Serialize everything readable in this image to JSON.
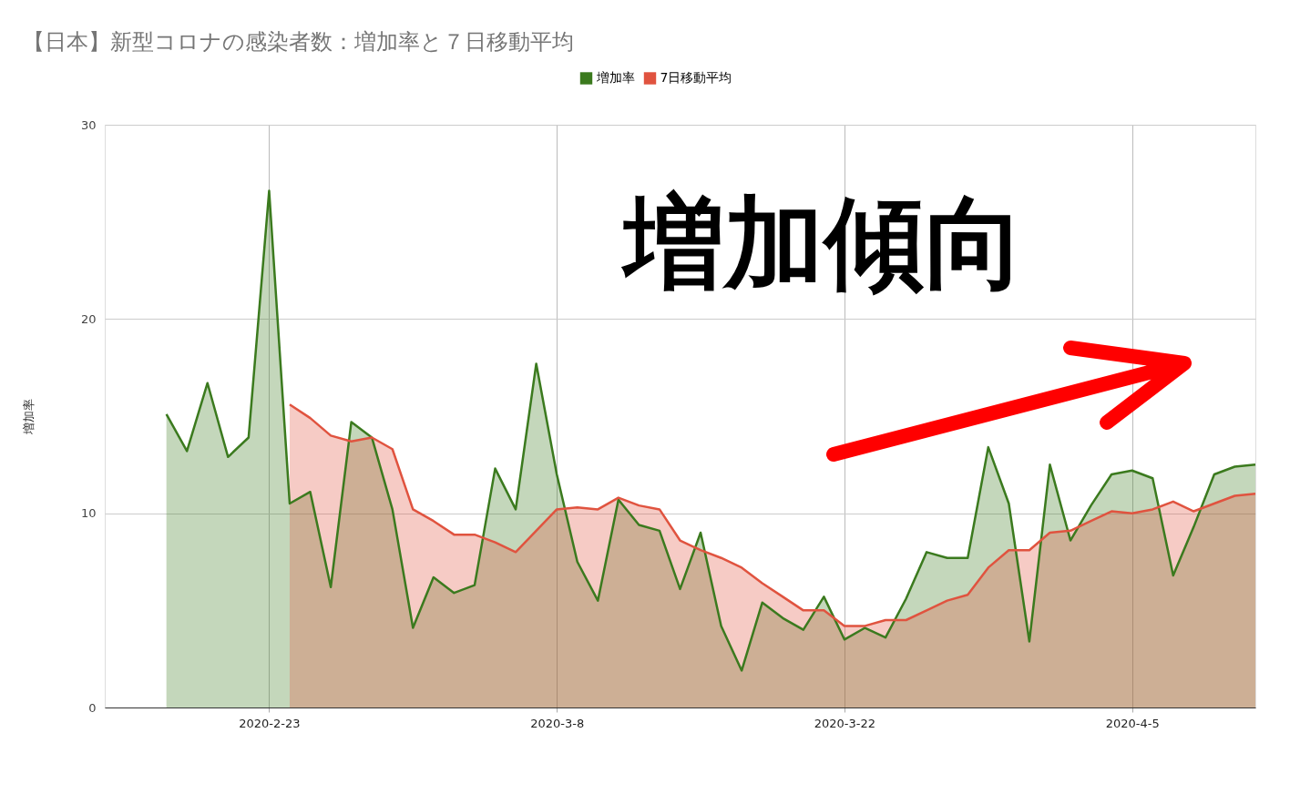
{
  "chart_data": {
    "type": "area",
    "title": "【日本】新型コロナの感染者数：増加率と７日移動平均",
    "ylabel": "増加率",
    "x": [
      "2020-02-18",
      "2020-02-19",
      "2020-02-20",
      "2020-02-21",
      "2020-02-22",
      "2020-02-23",
      "2020-02-24",
      "2020-02-25",
      "2020-02-26",
      "2020-02-27",
      "2020-02-28",
      "2020-02-29",
      "2020-03-01",
      "2020-03-02",
      "2020-03-03",
      "2020-03-04",
      "2020-03-05",
      "2020-03-06",
      "2020-03-07",
      "2020-03-08",
      "2020-03-09",
      "2020-03-10",
      "2020-03-11",
      "2020-03-12",
      "2020-03-13",
      "2020-03-14",
      "2020-03-15",
      "2020-03-16",
      "2020-03-17",
      "2020-03-18",
      "2020-03-19",
      "2020-03-20",
      "2020-03-21",
      "2020-03-22",
      "2020-03-23",
      "2020-03-24",
      "2020-03-25",
      "2020-03-26",
      "2020-03-27",
      "2020-03-28",
      "2020-03-29",
      "2020-03-30",
      "2020-03-31",
      "2020-04-01",
      "2020-04-02",
      "2020-04-03",
      "2020-04-04",
      "2020-04-05",
      "2020-04-06",
      "2020-04-07",
      "2020-04-08",
      "2020-04-09",
      "2020-04-10",
      "2020-04-11"
    ],
    "series": [
      {
        "name": "増加率",
        "color": "#3b7a1e",
        "values": [
          15.1,
          13.2,
          16.7,
          12.9,
          13.9,
          26.6,
          10.5,
          11.1,
          6.2,
          14.7,
          13.9,
          10.2,
          4.1,
          6.7,
          5.9,
          6.3,
          12.3,
          10.2,
          17.7,
          12.0,
          7.5,
          5.5,
          10.7,
          9.4,
          9.1,
          6.1,
          9.0,
          4.2,
          1.9,
          5.4,
          4.6,
          4.0,
          5.7,
          3.5,
          4.1,
          3.6,
          5.6,
          8.0,
          7.7,
          7.7,
          13.4,
          10.5,
          3.4,
          12.5,
          8.6,
          10.4,
          12.0,
          12.2,
          11.8,
          6.8,
          9.3,
          12.0,
          12.4,
          12.5
        ]
      },
      {
        "name": "7日移動平均",
        "color": "#e0533f",
        "values": [
          null,
          null,
          null,
          null,
          null,
          null,
          15.6,
          14.9,
          14.0,
          13.7,
          13.9,
          13.3,
          10.2,
          9.6,
          8.9,
          8.9,
          8.5,
          8.0,
          9.1,
          10.2,
          10.3,
          10.2,
          10.8,
          10.4,
          10.2,
          8.6,
          8.1,
          7.7,
          7.2,
          6.4,
          5.7,
          5.0,
          5.0,
          4.2,
          4.2,
          4.5,
          4.5,
          5.0,
          5.5,
          5.8,
          7.2,
          8.1,
          8.1,
          9.0,
          9.1,
          9.6,
          10.1,
          10.0,
          10.2,
          10.6,
          10.1,
          10.5,
          10.9,
          11.0
        ]
      }
    ],
    "xlim": [
      "2020-02-15",
      "2020-04-11"
    ],
    "xticks": [
      {
        "value": "2020-02-23",
        "label": "2020-2-23"
      },
      {
        "value": "2020-03-08",
        "label": "2020-3-8"
      },
      {
        "value": "2020-03-22",
        "label": "2020-3-22"
      },
      {
        "value": "2020-04-05",
        "label": "2020-4-5"
      }
    ],
    "ylim": [
      0,
      30
    ],
    "yticks": [
      0,
      10,
      20,
      30
    ],
    "grid": true,
    "legend": "top",
    "annotations": [
      "増加傾向"
    ]
  }
}
